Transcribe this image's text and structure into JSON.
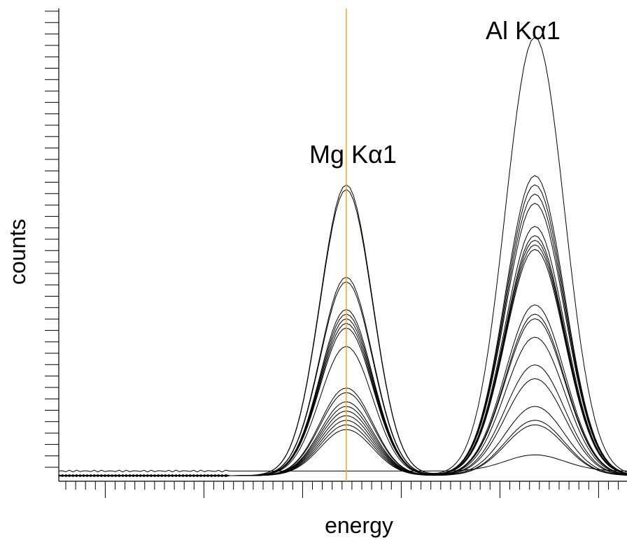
{
  "chart_data": {
    "type": "line",
    "title": "",
    "xlabel": "energy",
    "ylabel": "counts",
    "tick_labels_shown": false,
    "grid": false,
    "legend": "none",
    "line_color": "#000000",
    "marker_line_color": "#f5a623",
    "annotations": [
      {
        "text": "Mg Kα1",
        "x": 0.506
      },
      {
        "text": "Al Kα1",
        "x": 0.838
      }
    ],
    "marker_line_x": 0.506,
    "xlim": [
      0,
      1
    ],
    "ylim": [
      0,
      1
    ],
    "peaks": {
      "mg": {
        "center": 0.506,
        "sigma": 0.046
      },
      "al": {
        "center": 0.838,
        "sigma": 0.052
      }
    },
    "series": [
      {
        "mg": 0.63,
        "al": 0.95,
        "base": 0.0
      },
      {
        "mg": 0.62,
        "al": 0.65,
        "base": 0.0
      },
      {
        "mg": 0.43,
        "al": 0.63,
        "base": 0.0
      },
      {
        "mg": 0.42,
        "al": 0.61,
        "base": 0.0
      },
      {
        "mg": 0.36,
        "al": 0.59,
        "base": 0.0
      },
      {
        "mg": 0.35,
        "al": 0.54,
        "base": 0.0
      },
      {
        "mg": 0.34,
        "al": 0.52,
        "base": 0.0
      },
      {
        "mg": 0.33,
        "al": 0.51,
        "base": 0.0
      },
      {
        "mg": 0.32,
        "al": 0.5,
        "base": 0.0
      },
      {
        "mg": 0.28,
        "al": 0.49,
        "base": 0.0
      },
      {
        "mg": 0.19,
        "al": 0.37,
        "base": 0.0
      },
      {
        "mg": 0.18,
        "al": 0.35,
        "base": 0.0
      },
      {
        "mg": 0.16,
        "al": 0.34,
        "base": 0.0
      },
      {
        "mg": 0.15,
        "al": 0.3,
        "base": 0.0
      },
      {
        "mg": 0.14,
        "al": 0.24,
        "base": 0.0
      },
      {
        "mg": 0.13,
        "al": 0.21,
        "base": 0.0
      },
      {
        "mg": 0.12,
        "al": 0.15,
        "base": 0.0
      },
      {
        "mg": 0.11,
        "al": 0.12,
        "base": 0.0
      },
      {
        "mg": 0.1,
        "al": 0.11,
        "base": 0.0
      },
      {
        "mg": 0.0,
        "al": 0.035,
        "base": 0.01
      }
    ]
  }
}
